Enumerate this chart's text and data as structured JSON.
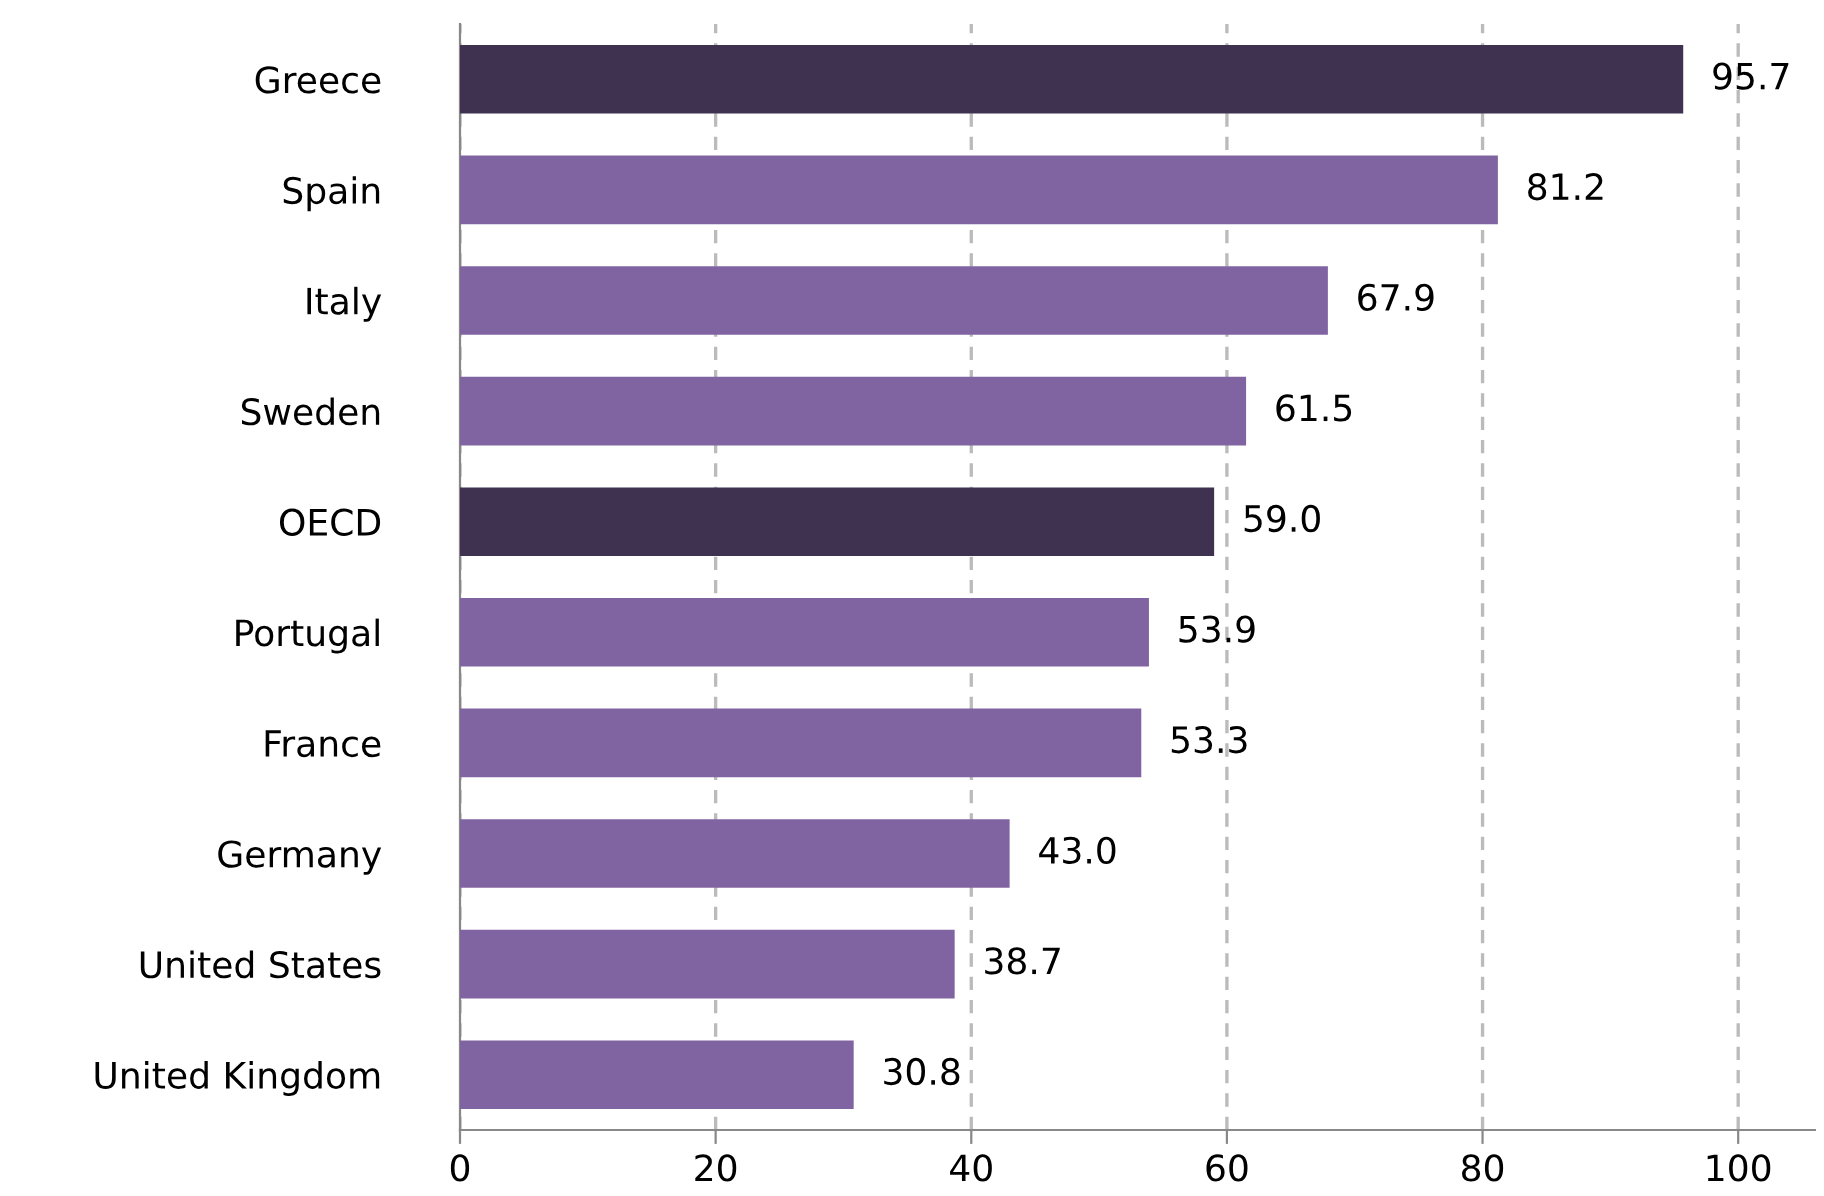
{
  "chart_data": {
    "type": "bar",
    "orientation": "horizontal",
    "categories": [
      "Greece",
      "Spain",
      "Italy",
      "Sweden",
      "OECD",
      "Portugal",
      "France",
      "Germany",
      "United States",
      "United Kingdom"
    ],
    "values": [
      95.7,
      81.2,
      67.9,
      61.5,
      59.0,
      53.9,
      53.3,
      43.0,
      38.7,
      30.8
    ],
    "value_labels": [
      "95.7",
      "81.2",
      "67.9",
      "61.5",
      "59.0",
      "53.9",
      "53.3",
      "43.0",
      "38.7",
      "30.8"
    ],
    "colors": [
      "#3f3150",
      "#8064a2",
      "#8064a2",
      "#8064a2",
      "#3f3150",
      "#8064a2",
      "#8064a2",
      "#8064a2",
      "#8064a2",
      "#8064a2"
    ],
    "xlim": [
      0,
      106
    ],
    "xticks": [
      0,
      20,
      40,
      60,
      80,
      100
    ],
    "grid": "x"
  }
}
